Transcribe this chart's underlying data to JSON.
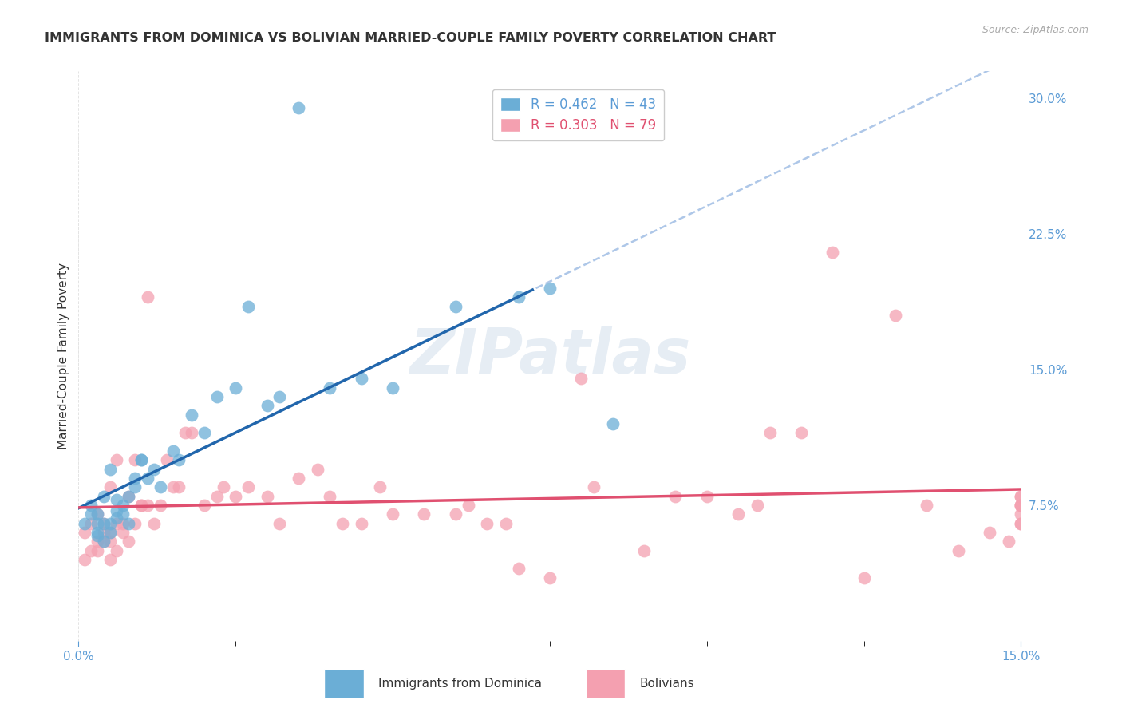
{
  "title": "IMMIGRANTS FROM DOMINICA VS BOLIVIAN MARRIED-COUPLE FAMILY POVERTY CORRELATION CHART",
  "source": "Source: ZipAtlas.com",
  "ylabel": "Married-Couple Family Poverty",
  "xlim": [
    0.0,
    0.15
  ],
  "ylim": [
    0.0,
    0.315
  ],
  "yticks_right": [
    0.075,
    0.15,
    0.225,
    0.3
  ],
  "yticklabels_right": [
    "7.5%",
    "15.0%",
    "22.5%",
    "30.0%"
  ],
  "series1_color": "#6baed6",
  "series2_color": "#f4a0b0",
  "series1_name": "Immigrants from Dominica",
  "series2_name": "Bolivians",
  "series1_line_color": "#2166ac",
  "series2_line_color": "#e05070",
  "dashed_line_color": "#aec7e8",
  "watermark": "ZIPatlas",
  "background_color": "#ffffff",
  "plot_bg_color": "#ffffff",
  "grid_color": "#dddddd",
  "series1_x": [
    0.001,
    0.002,
    0.002,
    0.003,
    0.003,
    0.003,
    0.003,
    0.004,
    0.004,
    0.004,
    0.005,
    0.005,
    0.005,
    0.006,
    0.006,
    0.006,
    0.007,
    0.007,
    0.008,
    0.008,
    0.009,
    0.009,
    0.01,
    0.01,
    0.011,
    0.012,
    0.013,
    0.015,
    0.016,
    0.018,
    0.02,
    0.022,
    0.025,
    0.027,
    0.03,
    0.032,
    0.04,
    0.045,
    0.05,
    0.06,
    0.07,
    0.075,
    0.085
  ],
  "series1_y": [
    0.065,
    0.07,
    0.075,
    0.058,
    0.06,
    0.065,
    0.07,
    0.055,
    0.065,
    0.08,
    0.06,
    0.065,
    0.095,
    0.068,
    0.072,
    0.078,
    0.07,
    0.075,
    0.065,
    0.08,
    0.085,
    0.09,
    0.1,
    0.1,
    0.09,
    0.095,
    0.085,
    0.105,
    0.1,
    0.125,
    0.115,
    0.135,
    0.14,
    0.185,
    0.13,
    0.135,
    0.14,
    0.145,
    0.14,
    0.185,
    0.19,
    0.195,
    0.12
  ],
  "series2_x": [
    0.001,
    0.001,
    0.002,
    0.002,
    0.003,
    0.003,
    0.003,
    0.004,
    0.004,
    0.004,
    0.005,
    0.005,
    0.005,
    0.005,
    0.006,
    0.006,
    0.006,
    0.007,
    0.007,
    0.008,
    0.008,
    0.009,
    0.009,
    0.01,
    0.01,
    0.011,
    0.011,
    0.012,
    0.013,
    0.014,
    0.015,
    0.016,
    0.017,
    0.018,
    0.02,
    0.022,
    0.023,
    0.025,
    0.027,
    0.03,
    0.032,
    0.035,
    0.038,
    0.04,
    0.042,
    0.045,
    0.048,
    0.05,
    0.055,
    0.06,
    0.062,
    0.065,
    0.068,
    0.07,
    0.075,
    0.08,
    0.082,
    0.09,
    0.095,
    0.1,
    0.105,
    0.108,
    0.11,
    0.115,
    0.12,
    0.125,
    0.13,
    0.135,
    0.14,
    0.145,
    0.148,
    0.15,
    0.15,
    0.15,
    0.15,
    0.15,
    0.15,
    0.15,
    0.15
  ],
  "series2_y": [
    0.045,
    0.06,
    0.05,
    0.065,
    0.05,
    0.055,
    0.07,
    0.055,
    0.06,
    0.065,
    0.045,
    0.055,
    0.06,
    0.085,
    0.05,
    0.065,
    0.1,
    0.06,
    0.065,
    0.055,
    0.08,
    0.065,
    0.1,
    0.075,
    0.075,
    0.075,
    0.19,
    0.065,
    0.075,
    0.1,
    0.085,
    0.085,
    0.115,
    0.115,
    0.075,
    0.08,
    0.085,
    0.08,
    0.085,
    0.08,
    0.065,
    0.09,
    0.095,
    0.08,
    0.065,
    0.065,
    0.085,
    0.07,
    0.07,
    0.07,
    0.075,
    0.065,
    0.065,
    0.04,
    0.035,
    0.145,
    0.085,
    0.05,
    0.08,
    0.08,
    0.07,
    0.075,
    0.115,
    0.115,
    0.215,
    0.035,
    0.18,
    0.075,
    0.05,
    0.06,
    0.055,
    0.075,
    0.065,
    0.075,
    0.08,
    0.065,
    0.07,
    0.075,
    0.08
  ],
  "dominica_outlier_x": [
    0.035
  ],
  "dominica_outlier_y": [
    0.295
  ]
}
